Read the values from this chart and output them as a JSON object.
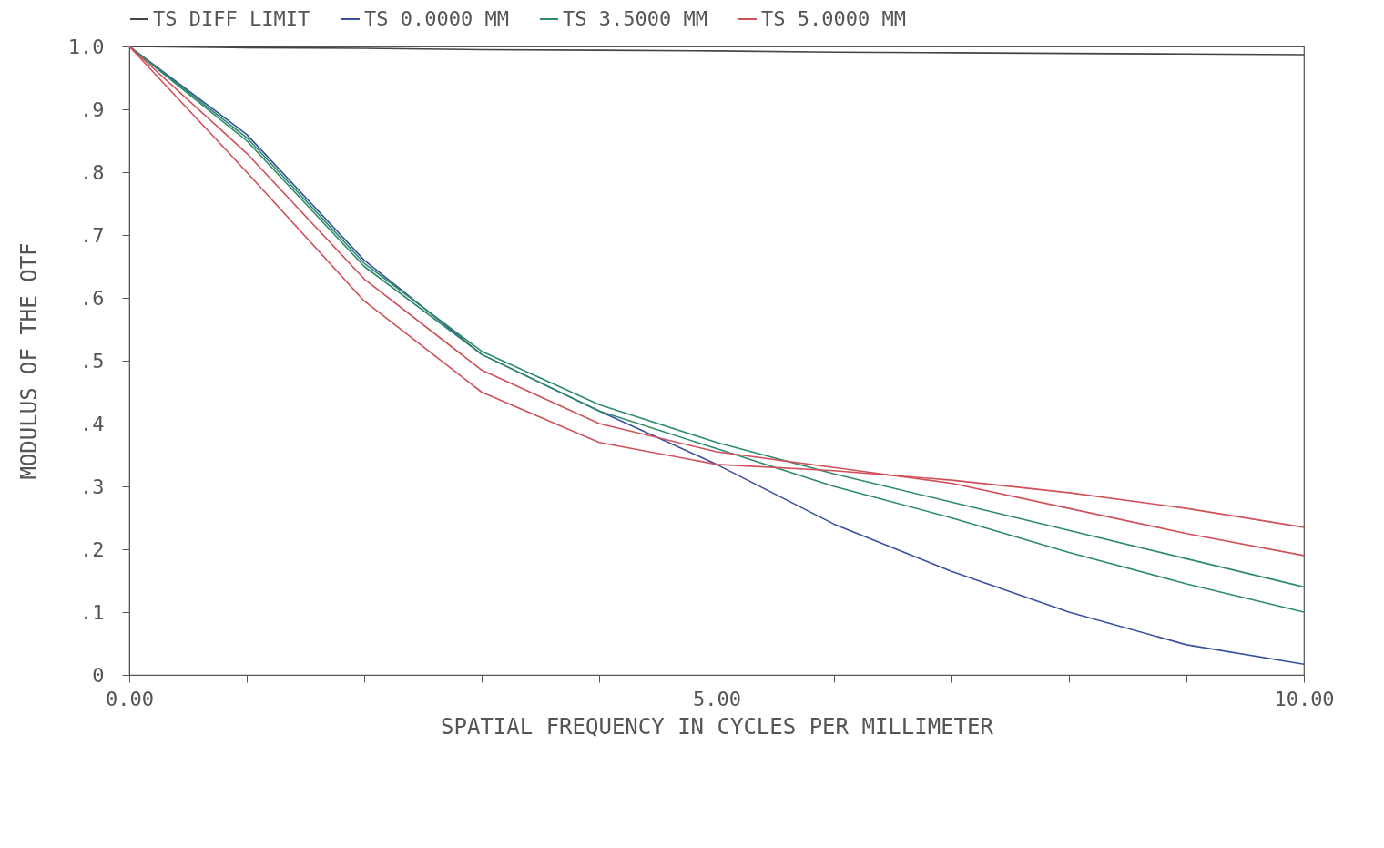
{
  "chart_data": {
    "type": "line",
    "xlabel": "SPATIAL FREQUENCY IN CYCLES PER MILLIMETER",
    "ylabel": "MODULUS OF THE OTF",
    "x": [
      0,
      1,
      2,
      3,
      4,
      5,
      6,
      7,
      8,
      9,
      10
    ],
    "series": [
      {
        "name": "TS DIFF LIMIT",
        "color": "#444444",
        "values": [
          1.0,
          0.998,
          0.997,
          0.995,
          0.994,
          0.993,
          0.991,
          0.99,
          0.989,
          0.988,
          0.987
        ]
      },
      {
        "name": "TS 0.0000 MM",
        "color": "#3a4fa0",
        "values": [
          1.0,
          0.86,
          0.66,
          0.51,
          0.42,
          0.335,
          0.24,
          0.165,
          0.1,
          0.048,
          0.017
        ]
      },
      {
        "name": "TS 3.5000 MM",
        "color": "#2e8b6a",
        "values": [
          1.0,
          0.855,
          0.655,
          0.515,
          0.43,
          0.37,
          0.32,
          0.275,
          0.23,
          0.185,
          0.14
        ]
      },
      {
        "color": "#2e8b6a",
        "values": [
          1.0,
          0.85,
          0.65,
          0.51,
          0.42,
          0.36,
          0.3,
          0.25,
          0.195,
          0.145,
          0.1
        ]
      },
      {
        "name": "TS 5.0000 MM",
        "color": "#d0505a",
        "values": [
          1.0,
          0.83,
          0.63,
          0.485,
          0.4,
          0.355,
          0.33,
          0.305,
          0.265,
          0.225,
          0.19
        ]
      },
      {
        "color": "#d0505a",
        "values": [
          1.0,
          0.8,
          0.595,
          0.45,
          0.37,
          0.335,
          0.325,
          0.31,
          0.29,
          0.265,
          0.235
        ]
      }
    ],
    "xlim": [
      0,
      10
    ],
    "ylim": [
      0,
      1
    ],
    "xticks": [
      {
        "value": 0,
        "label": "0.00"
      },
      {
        "value": 1,
        "label": null
      },
      {
        "value": 2,
        "label": null
      },
      {
        "value": 3,
        "label": null
      },
      {
        "value": 4,
        "label": null
      },
      {
        "value": 5,
        "label": "5.00"
      },
      {
        "value": 6,
        "label": null
      },
      {
        "value": 7,
        "label": null
      },
      {
        "value": 8,
        "label": null
      },
      {
        "value": 9,
        "label": null
      },
      {
        "value": 10,
        "label": "10.00"
      }
    ],
    "yticks": [
      0,
      {
        "value": 0.1,
        "label": ".1"
      },
      {
        "value": 0.2,
        "label": ".2"
      },
      {
        "value": 0.3,
        "label": ".3"
      },
      {
        "value": 0.4,
        "label": ".4"
      },
      {
        "value": 0.5,
        "label": ".5"
      },
      {
        "value": 0.6,
        "label": ".6"
      },
      {
        "value": 0.7,
        "label": ".7"
      },
      {
        "value": 0.8,
        "label": ".8"
      },
      {
        "value": 0.9,
        "label": ".9"
      },
      {
        "value": 1.0,
        "label": "1.0"
      }
    ],
    "grid": false,
    "legend": "top",
    "marker": "none",
    "line_style": "solid"
  }
}
